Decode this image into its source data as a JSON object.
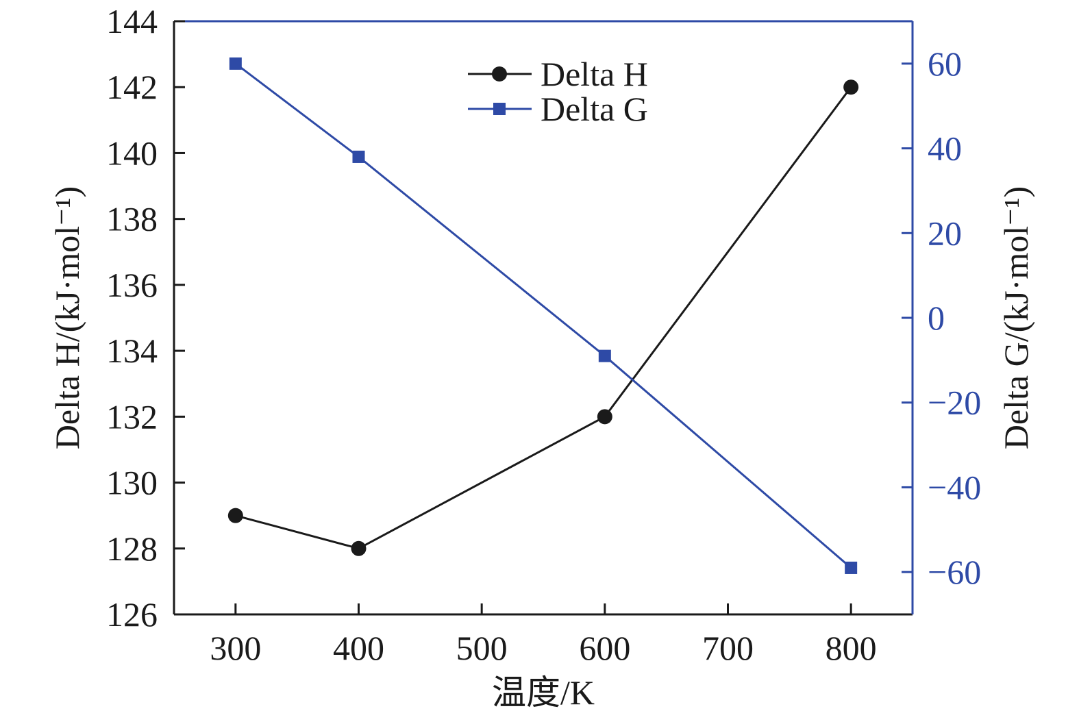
{
  "chart_data": {
    "type": "line",
    "x": [
      300,
      400,
      600,
      800
    ],
    "xlabel": "温度/K",
    "xticks": [
      "300",
      "400",
      "500",
      "600",
      "700",
      "800"
    ],
    "xlim": [
      250,
      850
    ],
    "series": [
      {
        "name": "Delta H",
        "axis": "left",
        "marker": "circle",
        "color": "#1a1a1a",
        "values": [
          129,
          128,
          132,
          142
        ]
      },
      {
        "name": "Delta G",
        "axis": "right",
        "marker": "square",
        "color": "#2e4aa6",
        "values": [
          60,
          38,
          -9,
          -59
        ]
      }
    ],
    "y_left": {
      "label": "Delta H/(kJ·mol⁻¹)",
      "ticks": [
        "126",
        "128",
        "130",
        "132",
        "134",
        "136",
        "138",
        "140",
        "142",
        "144"
      ],
      "ylim": [
        126,
        144
      ],
      "color": "#1a1a1a"
    },
    "y_right": {
      "label": "Delta G/(kJ·mol⁻¹)",
      "ticks": [
        "−60",
        "−40",
        "−20",
        "0",
        "20",
        "40",
        "60"
      ],
      "ylim": [
        -70,
        70
      ],
      "color": "#2e4aa6"
    },
    "legend_position": "top-center",
    "grid": false
  }
}
